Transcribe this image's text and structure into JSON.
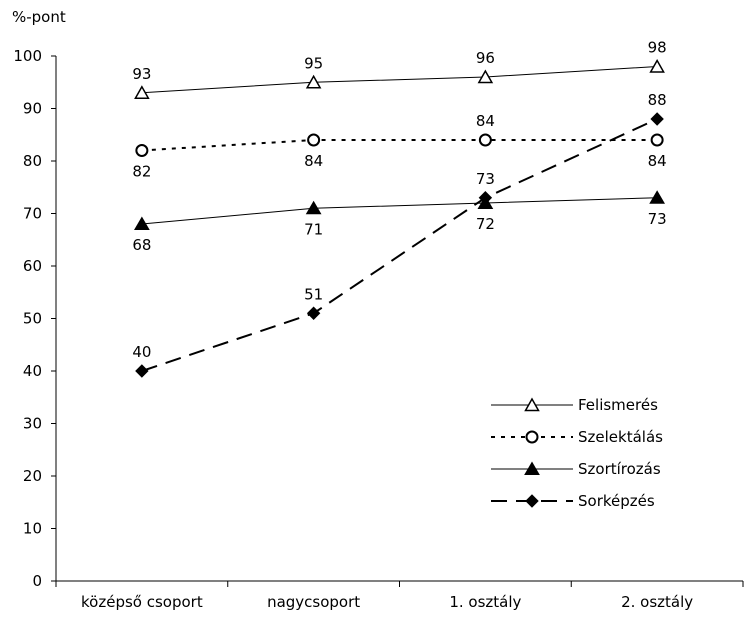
{
  "chart_data": {
    "type": "line",
    "ylabel": "%-pont",
    "ylim": [
      0,
      100
    ],
    "ytick_step": 10,
    "categories": [
      "középső csoport",
      "nagycsoport",
      "1. osztály",
      "2. osztály"
    ],
    "legend_position": "bottom-right",
    "series": [
      {
        "name": "Felismerés",
        "values": [
          93,
          95,
          96,
          98
        ],
        "marker": "open-triangle",
        "line": "solid",
        "line_width": 1,
        "label_pos": [
          "above",
          "above",
          "above",
          "above"
        ]
      },
      {
        "name": "Szelektálás",
        "values": [
          82,
          84,
          84,
          84
        ],
        "marker": "open-circle",
        "line": "dotted",
        "line_width": 2,
        "label_pos": [
          "below",
          "below",
          "above",
          "below"
        ]
      },
      {
        "name": "Szortírozás",
        "values": [
          68,
          71,
          72,
          73
        ],
        "marker": "filled-triangle",
        "line": "solid",
        "line_width": 1,
        "label_pos": [
          "below",
          "below",
          "below",
          "below"
        ]
      },
      {
        "name": "Sorképzés",
        "values": [
          40,
          51,
          73,
          88
        ],
        "marker": "filled-diamond",
        "line": "dashed",
        "line_width": 2,
        "label_pos": [
          "above",
          "above",
          "above",
          "above"
        ]
      }
    ]
  }
}
